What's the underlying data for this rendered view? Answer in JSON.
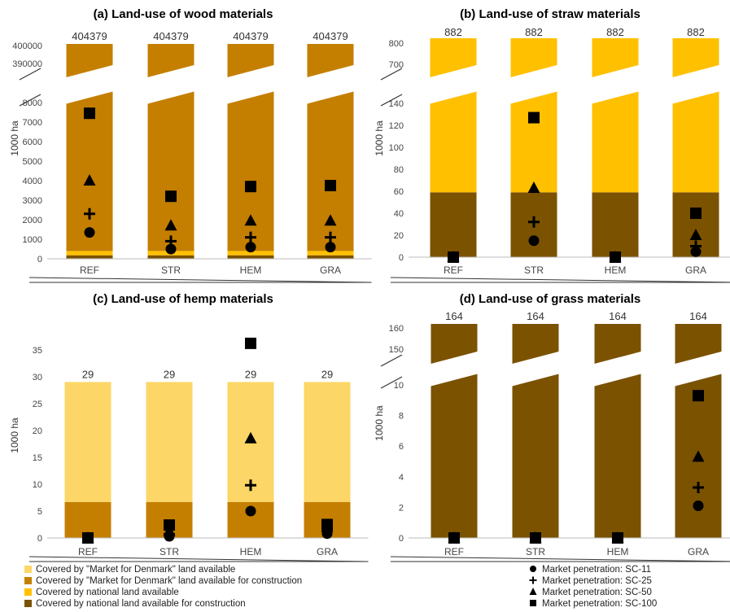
{
  "colors": {
    "market_available": "#FCD666",
    "market_construction": "#C47F00",
    "national_available": "#FFC000",
    "national_construction": "#7B5200",
    "marker": "#000000"
  },
  "legend_land": [
    {
      "key": "market_available",
      "label": "Covered by \"Market for Denmark\" land available"
    },
    {
      "key": "market_construction",
      "label": "Covered by \"Market for Denmark\" land available for construction"
    },
    {
      "key": "national_available",
      "label": "Covered by national land available"
    },
    {
      "key": "national_construction",
      "label": "Covered by national land available for construction"
    }
  ],
  "legend_markers": [
    {
      "marker": "circle",
      "label": "Market penetration: SC-11"
    },
    {
      "marker": "plus",
      "label": "Market penetration: SC-25"
    },
    {
      "marker": "triangle",
      "label": "Market penetration: SC-50"
    },
    {
      "marker": "square",
      "label": "Market penetration: SC-100"
    }
  ],
  "chart_data": [
    {
      "type": "bar",
      "title": "(a) Land-use of wood materials",
      "ylabel": "1000 ha",
      "categories": [
        "REF",
        "STR",
        "HEM",
        "GRA"
      ],
      "y_axis": "broken",
      "lower_ticks": [
        0,
        1000,
        2000,
        3000,
        4000,
        5000,
        6000,
        7000,
        8000
      ],
      "upper_ticks": [
        390000,
        400000
      ],
      "bar_totals": [
        404379,
        404379,
        404379,
        404379
      ],
      "bar_segments": [
        {
          "key": "national_construction",
          "values": [
            180,
            180,
            180,
            180
          ]
        },
        {
          "key": "national_available",
          "values": [
            220,
            220,
            220,
            220
          ]
        },
        {
          "key": "market_construction",
          "values": [
            403979,
            403979,
            403979,
            403979
          ]
        }
      ],
      "series": [
        {
          "name": "Market penetration: SC-11",
          "marker": "circle",
          "values": [
            1350,
            500,
            600,
            600
          ]
        },
        {
          "name": "Market penetration: SC-25",
          "marker": "plus",
          "values": [
            2300,
            900,
            1100,
            1100
          ]
        },
        {
          "name": "Market penetration: SC-50",
          "marker": "triangle",
          "values": [
            4000,
            1700,
            1950,
            1950
          ]
        },
        {
          "name": "Market penetration: SC-100",
          "marker": "square",
          "values": [
            7450,
            3200,
            3700,
            3750
          ]
        }
      ]
    },
    {
      "type": "bar",
      "title": "(b) Land-use of straw materials",
      "ylabel": "1000 ha",
      "categories": [
        "REF",
        "STR",
        "HEM",
        "GRA"
      ],
      "y_axis": "broken",
      "lower_ticks": [
        0,
        20,
        40,
        60,
        80,
        100,
        120,
        140
      ],
      "upper_ticks": [
        700,
        800
      ],
      "bar_totals": [
        882,
        882,
        882,
        882
      ],
      "bar_segments": [
        {
          "key": "national_construction",
          "values": [
            59,
            59,
            59,
            59
          ]
        },
        {
          "key": "national_available",
          "values": [
            823,
            823,
            823,
            823
          ]
        }
      ],
      "series": [
        {
          "name": "Market penetration: SC-11",
          "marker": "circle",
          "values": [
            0,
            15,
            0,
            5
          ]
        },
        {
          "name": "Market penetration: SC-25",
          "marker": "plus",
          "values": [
            0,
            32,
            0,
            10
          ]
        },
        {
          "name": "Market penetration: SC-50",
          "marker": "triangle",
          "values": [
            0,
            63,
            0,
            20
          ]
        },
        {
          "name": "Market penetration: SC-100",
          "marker": "square",
          "values": [
            0,
            127,
            0,
            40
          ]
        }
      ]
    },
    {
      "type": "bar",
      "title": "(c) Land-use of hemp materials",
      "ylabel": "1000 ha",
      "categories": [
        "REF",
        "STR",
        "HEM",
        "GRA"
      ],
      "y_axis": "linear",
      "ylim": [
        0,
        38
      ],
      "ticks": [
        0,
        5,
        10,
        15,
        20,
        25,
        30,
        35
      ],
      "bar_totals": [
        29,
        29,
        29,
        29
      ],
      "bar_segments": [
        {
          "key": "market_construction",
          "values": [
            6.7,
            6.7,
            6.7,
            6.7
          ]
        },
        {
          "key": "market_available",
          "values": [
            22.3,
            22.3,
            22.3,
            22.3
          ]
        }
      ],
      "series": [
        {
          "name": "Market penetration: SC-11",
          "marker": "circle",
          "values": [
            0,
            0.3,
            5,
            0.8
          ]
        },
        {
          "name": "Market penetration: SC-25",
          "marker": "plus",
          "values": [
            0,
            0.7,
            9.8,
            1.4
          ]
        },
        {
          "name": "Market penetration: SC-50",
          "marker": "triangle",
          "values": [
            0,
            1.3,
            18.5,
            2
          ]
        },
        {
          "name": "Market penetration: SC-100",
          "marker": "square",
          "values": [
            0,
            2.4,
            36.2,
            2.5
          ]
        }
      ]
    },
    {
      "type": "bar",
      "title": "(d) Land-use of grass materials",
      "ylabel": "1000 ha",
      "categories": [
        "REF",
        "STR",
        "HEM",
        "GRA"
      ],
      "y_axis": "broken",
      "lower_ticks": [
        0,
        2,
        4,
        6,
        8,
        10
      ],
      "upper_ticks": [
        150,
        160
      ],
      "bar_totals": [
        164,
        164,
        164,
        164
      ],
      "bar_segments": [
        {
          "key": "national_construction",
          "values": [
            164,
            164,
            164,
            164
          ]
        }
      ],
      "series": [
        {
          "name": "Market penetration: SC-11",
          "marker": "circle",
          "values": [
            0,
            0,
            0,
            2.1
          ]
        },
        {
          "name": "Market penetration: SC-25",
          "marker": "plus",
          "values": [
            0,
            0,
            0,
            3.3
          ]
        },
        {
          "name": "Market penetration: SC-50",
          "marker": "triangle",
          "values": [
            0,
            0,
            0,
            5.3
          ]
        },
        {
          "name": "Market penetration: SC-100",
          "marker": "square",
          "values": [
            0,
            0,
            0,
            9.3
          ]
        }
      ]
    }
  ]
}
